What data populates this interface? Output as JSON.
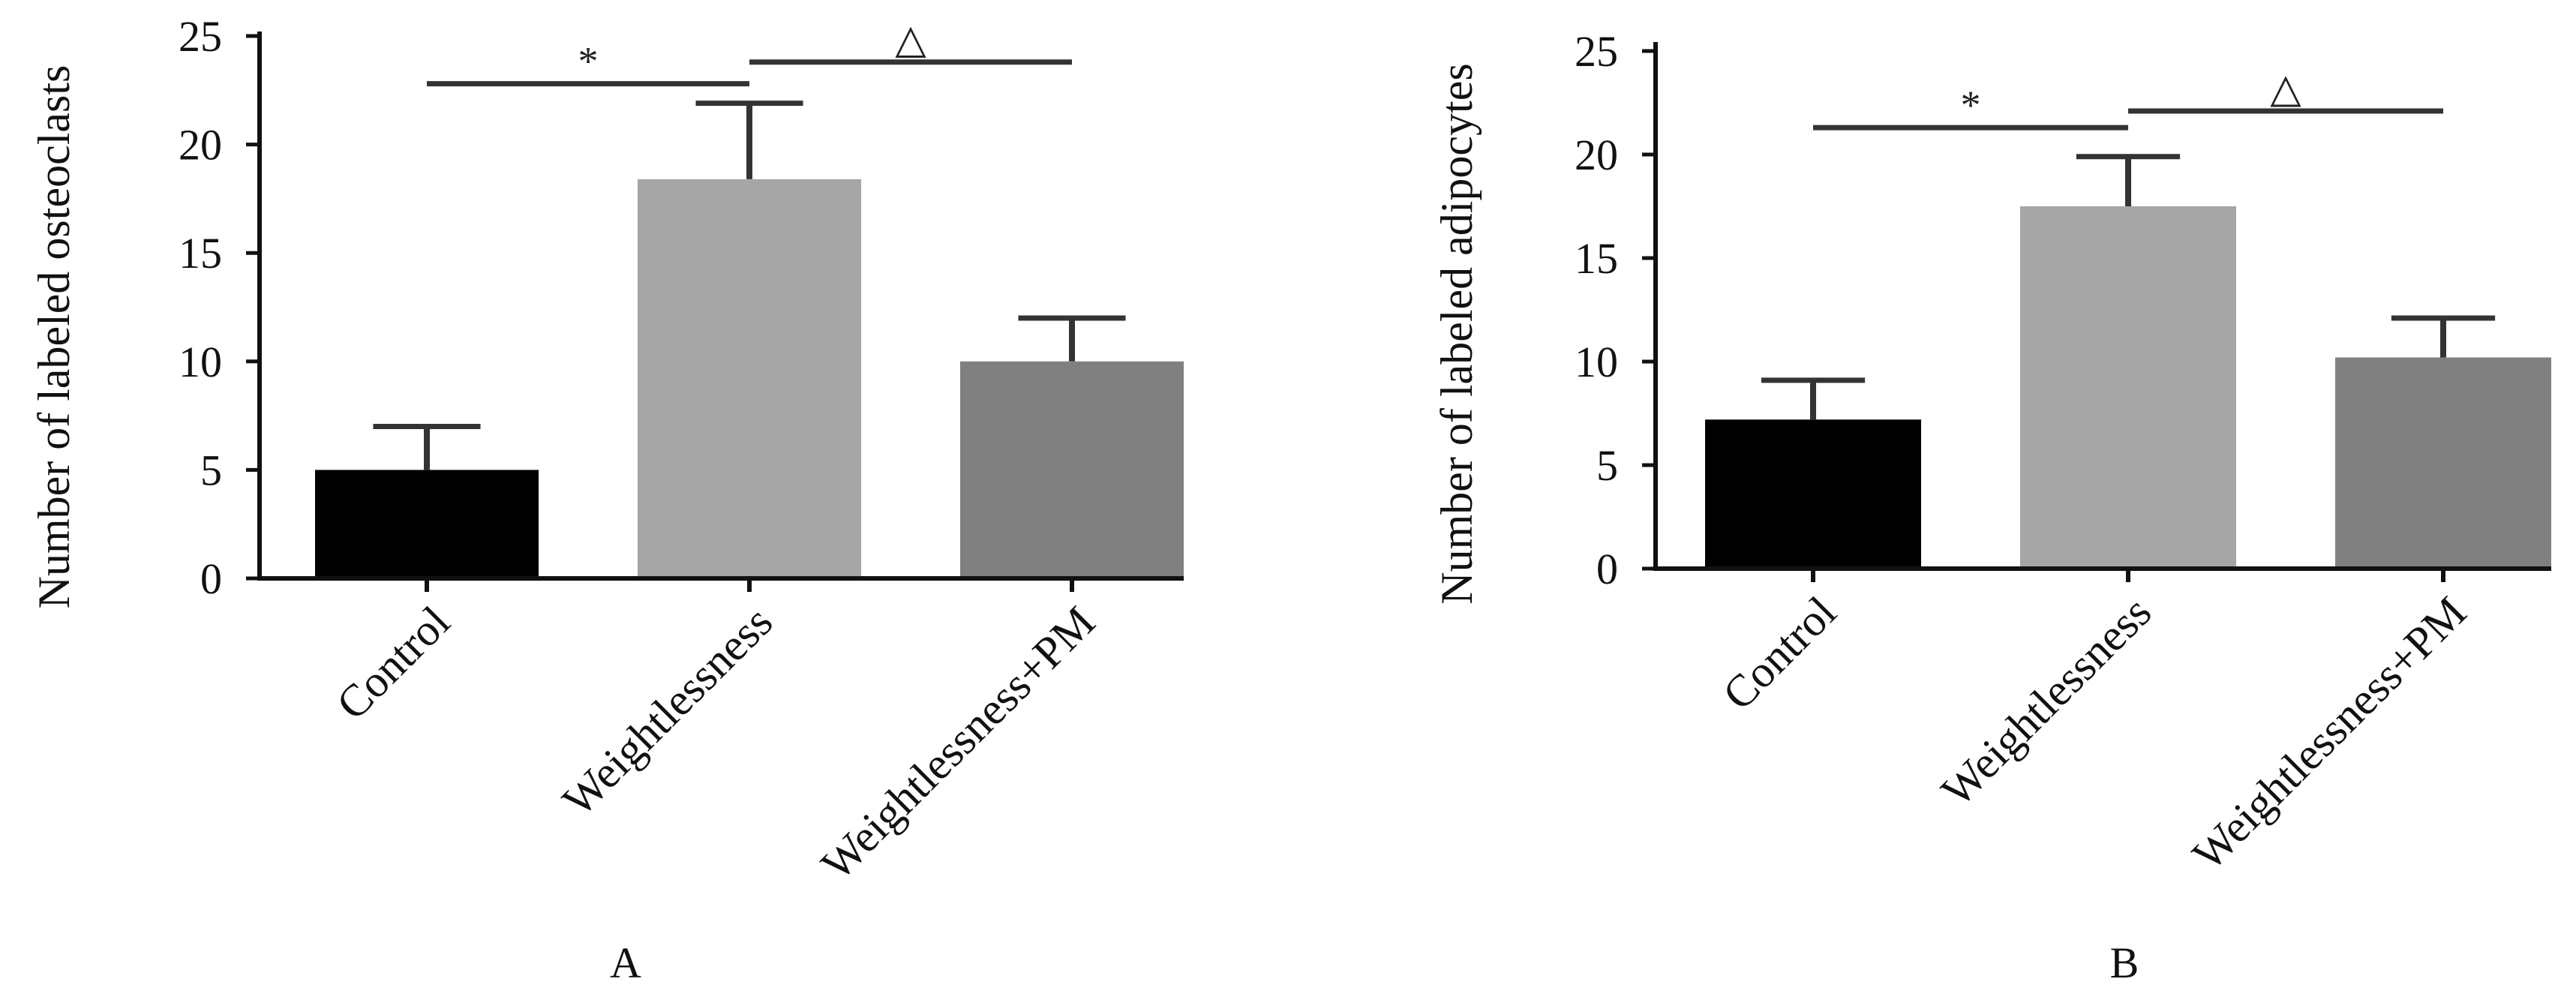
{
  "chart_data": [
    {
      "type": "bar",
      "panel_label": "A",
      "ylabel": "Number of labeled osteoclasts",
      "categories": [
        "Control",
        "Weightlessness",
        "Weightlessness+PM"
      ],
      "values": [
        5.0,
        18.4,
        10.0
      ],
      "errors": [
        2.0,
        3.5,
        2.0
      ],
      "colors": [
        "#000000",
        "#a6a6a6",
        "#808080"
      ],
      "error_color": "#333333",
      "ylim": [
        0,
        25
      ],
      "yticks": [
        0,
        5,
        10,
        15,
        20,
        25
      ],
      "significance": [
        {
          "from": 0,
          "to": 1,
          "y": 22.8,
          "symbol": "*"
        },
        {
          "from": 1,
          "to": 2,
          "y": 23.8,
          "symbol": "△"
        }
      ],
      "grid": false,
      "legend": null
    },
    {
      "type": "bar",
      "panel_label": "B",
      "ylabel": "Number of labeled adipocytes",
      "categories": [
        "Control",
        "Weightlessness",
        "Weightlessness+PM"
      ],
      "values": [
        7.2,
        17.5,
        10.2
      ],
      "errors": [
        1.9,
        2.4,
        1.9
      ],
      "colors": [
        "#000000",
        "#a6a6a6",
        "#808080"
      ],
      "error_color": "#333333",
      "ylim": [
        0,
        25
      ],
      "yticks": [
        0,
        5,
        10,
        15,
        20,
        25
      ],
      "significance": [
        {
          "from": 0,
          "to": 1,
          "y": 21.3,
          "symbol": "*"
        },
        {
          "from": 1,
          "to": 2,
          "y": 22.1,
          "symbol": "△"
        }
      ],
      "grid": false,
      "legend": null
    }
  ]
}
